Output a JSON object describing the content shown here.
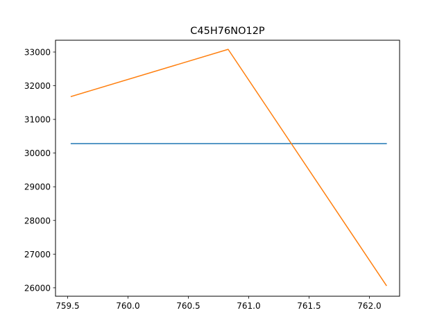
{
  "chart_data": {
    "type": "line",
    "title": "C45H76NO12P",
    "xlabel": "",
    "ylabel": "",
    "xlim": [
      759.4,
      762.25
    ],
    "ylim": [
      25750,
      33350
    ],
    "x_ticks": [
      759.5,
      760.0,
      760.5,
      761.0,
      761.5,
      762.0
    ],
    "x_tick_labels": [
      "759.5",
      "760.0",
      "760.5",
      "761.0",
      "761.5",
      "762.0"
    ],
    "y_ticks": [
      26000,
      27000,
      28000,
      29000,
      30000,
      31000,
      32000,
      33000
    ],
    "y_tick_labels": [
      "26000",
      "27000",
      "28000",
      "29000",
      "30000",
      "31000",
      "32000",
      "33000"
    ],
    "grid": false,
    "legend": "none",
    "series": [
      {
        "color": "#1f77b4",
        "x": [
          759.53,
          762.14
        ],
        "y": [
          30280,
          30280
        ]
      },
      {
        "color": "#ff7f0e",
        "x": [
          759.53,
          760.83,
          762.14
        ],
        "y": [
          31680,
          33080,
          26070
        ]
      }
    ]
  }
}
